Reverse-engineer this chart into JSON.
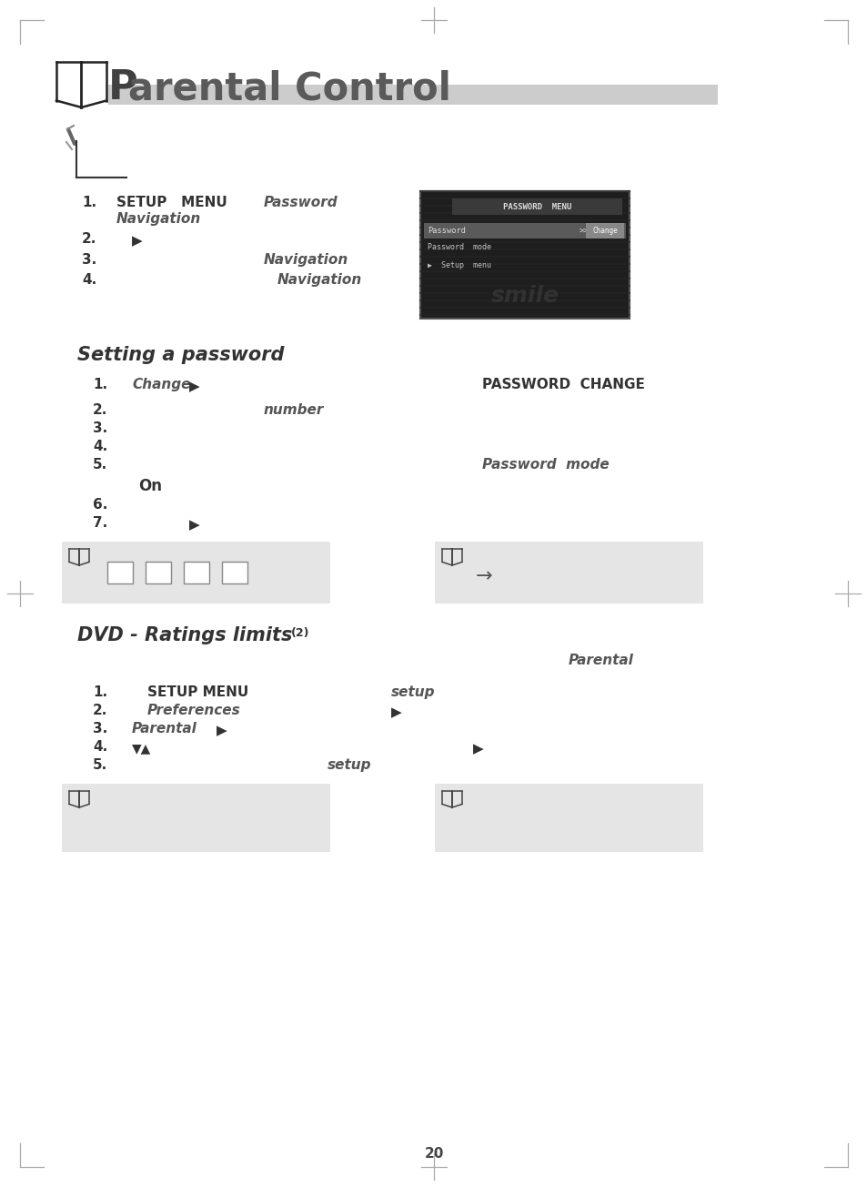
{
  "bg_color": "#ffffff",
  "title_P": "P",
  "title_rest": "arental Control",
  "title_color": "#5a5a5a",
  "title_fontsize": 30,
  "header_bar_color": "#cccccc",
  "section1_heading": "Setting a password",
  "section2_heading": "DVD - Ratings limits",
  "section2_superscript": "(2)",
  "page_number": "20",
  "corner_color": "#aaaaaa",
  "note_box_color": "#e5e5e5",
  "step_color": "#333333",
  "italic_color": "#555555",
  "screen_border_color": "#555555",
  "screen_bg": "#1e1e1e",
  "screen_title_bar_color": "#3a3a3a",
  "screen_highlight_color": "#5a5a5a",
  "screen_btn_color": "#888888",
  "screen_text_color": "#dddddd"
}
